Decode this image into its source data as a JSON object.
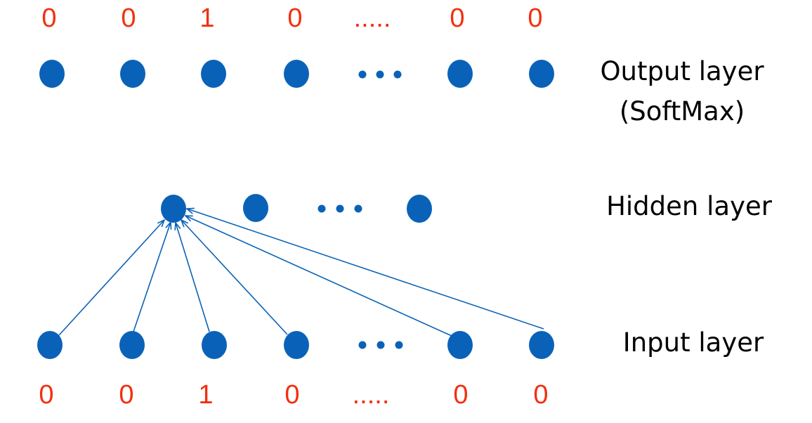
{
  "colors": {
    "node": "#0a62b8",
    "edge": "#0a62b8",
    "value_text": "#f2300f",
    "label_text": "#000000",
    "background": "#ffffff"
  },
  "output_layer": {
    "label_line1": "Output layer",
    "label_line2": "(SoftMax)",
    "values": [
      "0",
      "0",
      "1",
      "0",
      ".....",
      "0",
      "0"
    ]
  },
  "hidden_layer": {
    "label": "Hidden layer"
  },
  "input_layer": {
    "label": "Input layer",
    "values": [
      "0",
      "0",
      "1",
      "0",
      ".....",
      "0",
      "0"
    ]
  }
}
